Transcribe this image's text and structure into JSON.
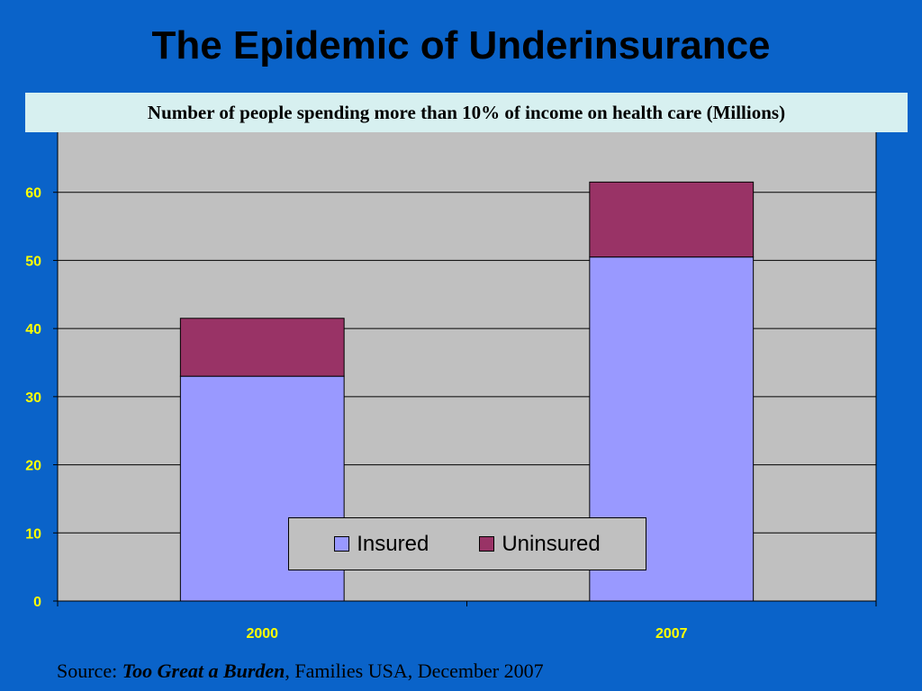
{
  "slide": {
    "title": "The Epidemic of Underinsurance",
    "subtitle": "Number of people spending more than 10% of income  on health care (Millions)",
    "source_prefix": "Source: ",
    "source_title": "Too Great a Burden",
    "source_suffix": ", Families USA, December 2007"
  },
  "colors": {
    "background": "#0a63c9",
    "plot_area": "#c0c0c0",
    "insured": "#9999ff",
    "uninsured": "#993366",
    "tick_label": "#ffff00"
  },
  "chart_data": {
    "type": "bar",
    "stacked": true,
    "categories": [
      "2000",
      "2007"
    ],
    "series": [
      {
        "name": "Insured",
        "values": [
          33,
          50.5
        ]
      },
      {
        "name": "Uninsured",
        "values": [
          8.5,
          11
        ]
      }
    ],
    "ylim": [
      0,
      70
    ],
    "yticks": [
      0,
      10,
      20,
      30,
      40,
      50,
      60
    ],
    "grid": true,
    "legend_position": "bottom-center",
    "title": "Number of people spending more than 10% of income  on health care (Millions)",
    "xlabel": "",
    "ylabel": ""
  }
}
